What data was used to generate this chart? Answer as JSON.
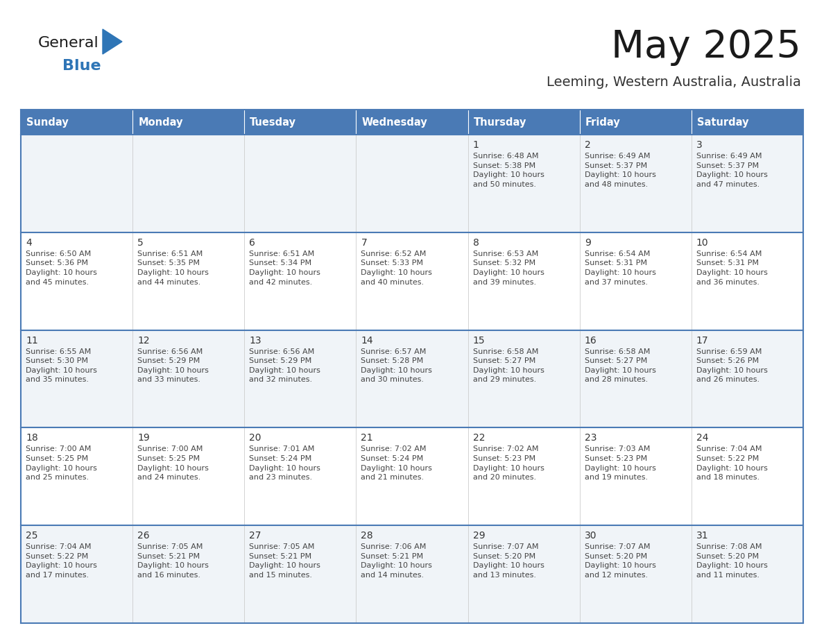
{
  "title": "May 2025",
  "subtitle": "Leeming, Western Australia, Australia",
  "days_of_week": [
    "Sunday",
    "Monday",
    "Tuesday",
    "Wednesday",
    "Thursday",
    "Friday",
    "Saturday"
  ],
  "header_bg": "#4a7ab5",
  "header_text": "#FFFFFF",
  "cell_bg_odd": "#f0f4f8",
  "cell_bg_even": "#FFFFFF",
  "row_border_color": "#4a7ab5",
  "cell_border_color": "#cccccc",
  "text_color": "#444444",
  "day_num_color": "#333333",
  "logo_text_color": "#1a1a1a",
  "logo_blue_color": "#2E75B6",
  "title_color": "#1a1a1a",
  "subtitle_color": "#333333",
  "weeks": [
    [
      {
        "day": null,
        "text": ""
      },
      {
        "day": null,
        "text": ""
      },
      {
        "day": null,
        "text": ""
      },
      {
        "day": null,
        "text": ""
      },
      {
        "day": 1,
        "text": "Sunrise: 6:48 AM\nSunset: 5:38 PM\nDaylight: 10 hours\nand 50 minutes."
      },
      {
        "day": 2,
        "text": "Sunrise: 6:49 AM\nSunset: 5:37 PM\nDaylight: 10 hours\nand 48 minutes."
      },
      {
        "day": 3,
        "text": "Sunrise: 6:49 AM\nSunset: 5:37 PM\nDaylight: 10 hours\nand 47 minutes."
      }
    ],
    [
      {
        "day": 4,
        "text": "Sunrise: 6:50 AM\nSunset: 5:36 PM\nDaylight: 10 hours\nand 45 minutes."
      },
      {
        "day": 5,
        "text": "Sunrise: 6:51 AM\nSunset: 5:35 PM\nDaylight: 10 hours\nand 44 minutes."
      },
      {
        "day": 6,
        "text": "Sunrise: 6:51 AM\nSunset: 5:34 PM\nDaylight: 10 hours\nand 42 minutes."
      },
      {
        "day": 7,
        "text": "Sunrise: 6:52 AM\nSunset: 5:33 PM\nDaylight: 10 hours\nand 40 minutes."
      },
      {
        "day": 8,
        "text": "Sunrise: 6:53 AM\nSunset: 5:32 PM\nDaylight: 10 hours\nand 39 minutes."
      },
      {
        "day": 9,
        "text": "Sunrise: 6:54 AM\nSunset: 5:31 PM\nDaylight: 10 hours\nand 37 minutes."
      },
      {
        "day": 10,
        "text": "Sunrise: 6:54 AM\nSunset: 5:31 PM\nDaylight: 10 hours\nand 36 minutes."
      }
    ],
    [
      {
        "day": 11,
        "text": "Sunrise: 6:55 AM\nSunset: 5:30 PM\nDaylight: 10 hours\nand 35 minutes."
      },
      {
        "day": 12,
        "text": "Sunrise: 6:56 AM\nSunset: 5:29 PM\nDaylight: 10 hours\nand 33 minutes."
      },
      {
        "day": 13,
        "text": "Sunrise: 6:56 AM\nSunset: 5:29 PM\nDaylight: 10 hours\nand 32 minutes."
      },
      {
        "day": 14,
        "text": "Sunrise: 6:57 AM\nSunset: 5:28 PM\nDaylight: 10 hours\nand 30 minutes."
      },
      {
        "day": 15,
        "text": "Sunrise: 6:58 AM\nSunset: 5:27 PM\nDaylight: 10 hours\nand 29 minutes."
      },
      {
        "day": 16,
        "text": "Sunrise: 6:58 AM\nSunset: 5:27 PM\nDaylight: 10 hours\nand 28 minutes."
      },
      {
        "day": 17,
        "text": "Sunrise: 6:59 AM\nSunset: 5:26 PM\nDaylight: 10 hours\nand 26 minutes."
      }
    ],
    [
      {
        "day": 18,
        "text": "Sunrise: 7:00 AM\nSunset: 5:25 PM\nDaylight: 10 hours\nand 25 minutes."
      },
      {
        "day": 19,
        "text": "Sunrise: 7:00 AM\nSunset: 5:25 PM\nDaylight: 10 hours\nand 24 minutes."
      },
      {
        "day": 20,
        "text": "Sunrise: 7:01 AM\nSunset: 5:24 PM\nDaylight: 10 hours\nand 23 minutes."
      },
      {
        "day": 21,
        "text": "Sunrise: 7:02 AM\nSunset: 5:24 PM\nDaylight: 10 hours\nand 21 minutes."
      },
      {
        "day": 22,
        "text": "Sunrise: 7:02 AM\nSunset: 5:23 PM\nDaylight: 10 hours\nand 20 minutes."
      },
      {
        "day": 23,
        "text": "Sunrise: 7:03 AM\nSunset: 5:23 PM\nDaylight: 10 hours\nand 19 minutes."
      },
      {
        "day": 24,
        "text": "Sunrise: 7:04 AM\nSunset: 5:22 PM\nDaylight: 10 hours\nand 18 minutes."
      }
    ],
    [
      {
        "day": 25,
        "text": "Sunrise: 7:04 AM\nSunset: 5:22 PM\nDaylight: 10 hours\nand 17 minutes."
      },
      {
        "day": 26,
        "text": "Sunrise: 7:05 AM\nSunset: 5:21 PM\nDaylight: 10 hours\nand 16 minutes."
      },
      {
        "day": 27,
        "text": "Sunrise: 7:05 AM\nSunset: 5:21 PM\nDaylight: 10 hours\nand 15 minutes."
      },
      {
        "day": 28,
        "text": "Sunrise: 7:06 AM\nSunset: 5:21 PM\nDaylight: 10 hours\nand 14 minutes."
      },
      {
        "day": 29,
        "text": "Sunrise: 7:07 AM\nSunset: 5:20 PM\nDaylight: 10 hours\nand 13 minutes."
      },
      {
        "day": 30,
        "text": "Sunrise: 7:07 AM\nSunset: 5:20 PM\nDaylight: 10 hours\nand 12 minutes."
      },
      {
        "day": 31,
        "text": "Sunrise: 7:08 AM\nSunset: 5:20 PM\nDaylight: 10 hours\nand 11 minutes."
      }
    ]
  ]
}
